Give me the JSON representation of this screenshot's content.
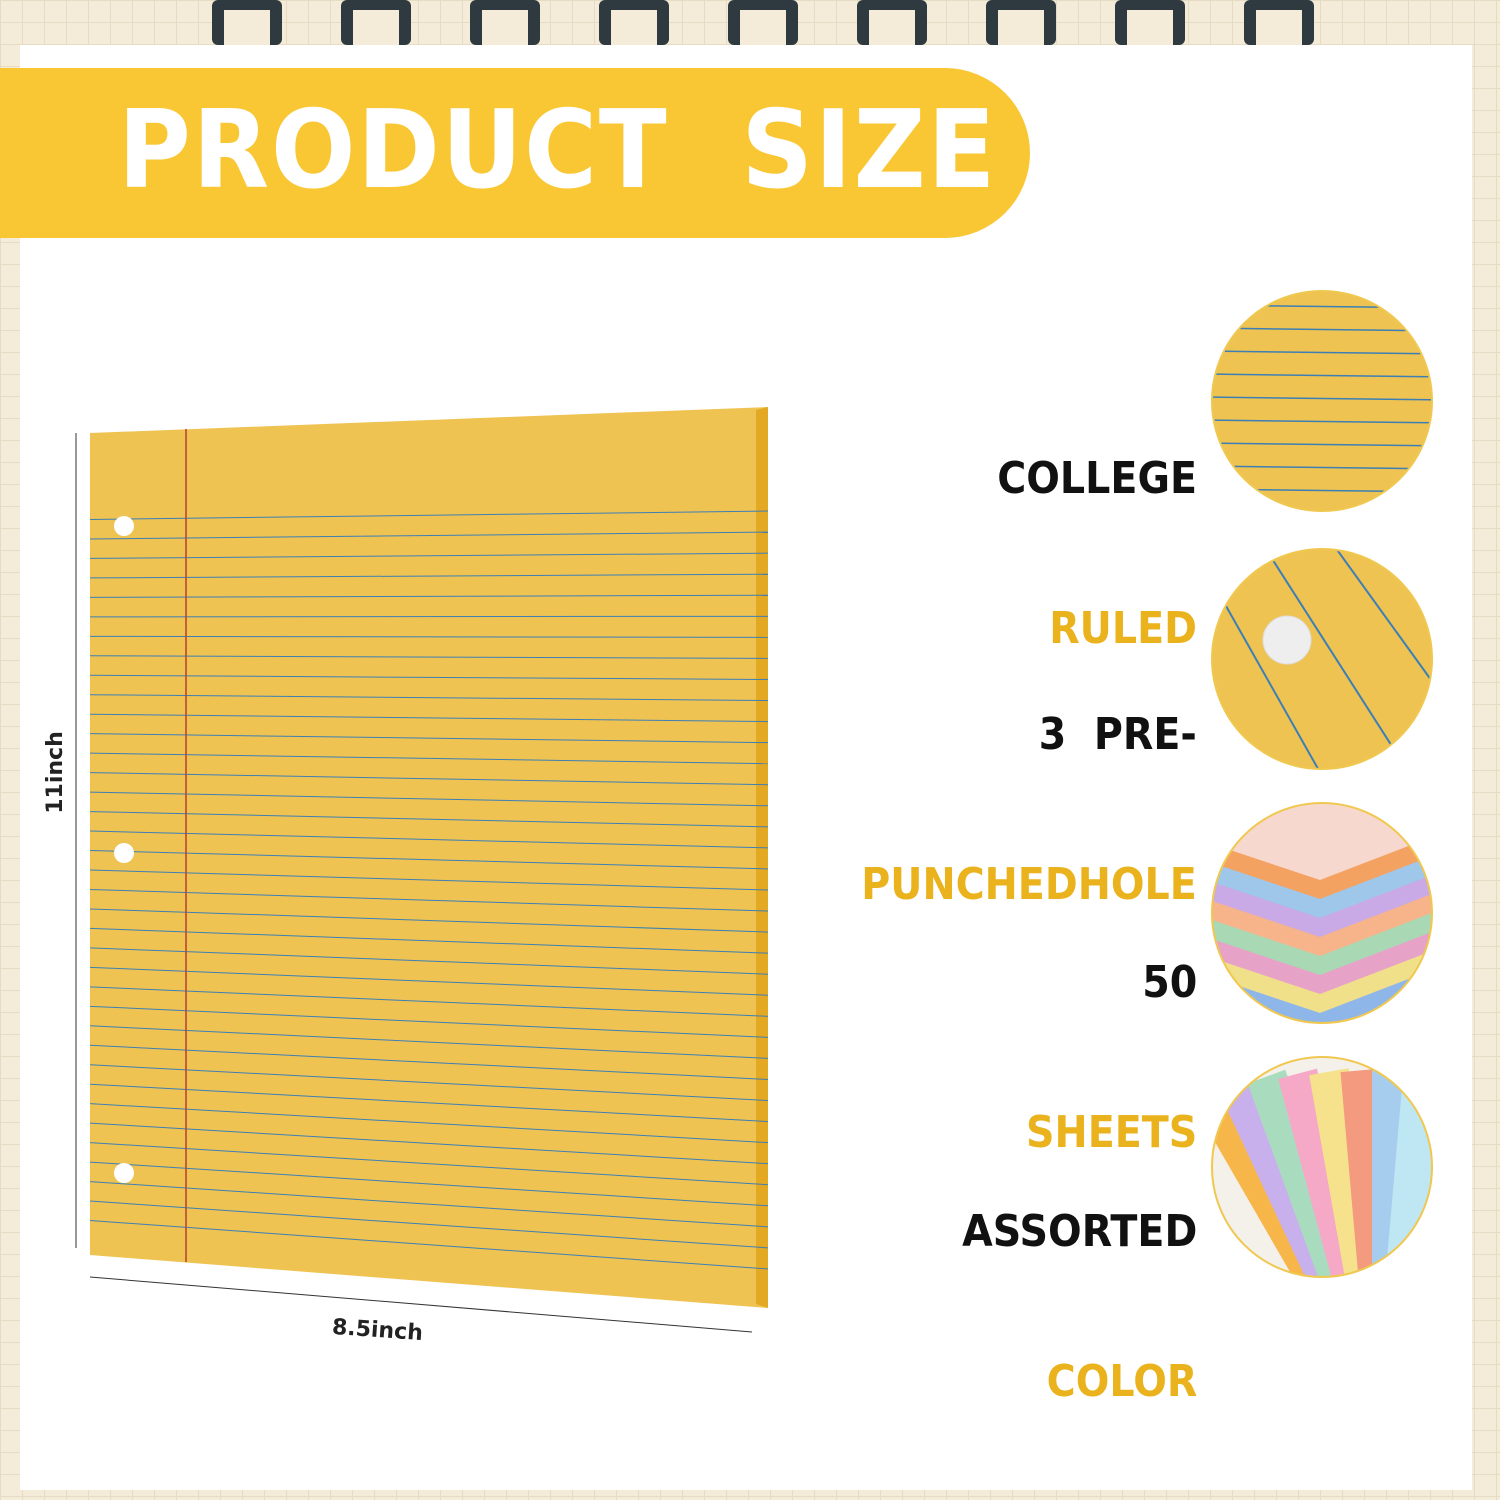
{
  "banner": {
    "title": "PRODUCT  SIZE"
  },
  "dimensions": {
    "height": "11inch",
    "width": "8.5inch"
  },
  "features": [
    {
      "line1": "COLLEGE",
      "line2": "RULED",
      "icon": "ruled-paper-closeup"
    },
    {
      "line1": "3  PRE-",
      "line2": "PUNCHEDHOLE",
      "icon": "punched-hole-closeup"
    },
    {
      "line1": "50",
      "line2": "SHEETS",
      "icon": "paper-stack-closeup"
    },
    {
      "line1": "ASSORTED",
      "line2": "COLOR",
      "icon": "assorted-color-paper-closeup"
    }
  ],
  "colors": {
    "accent": "#f9c734",
    "paper": "#eec352",
    "line": "#3d7fb5",
    "margin": "#b5402e"
  }
}
